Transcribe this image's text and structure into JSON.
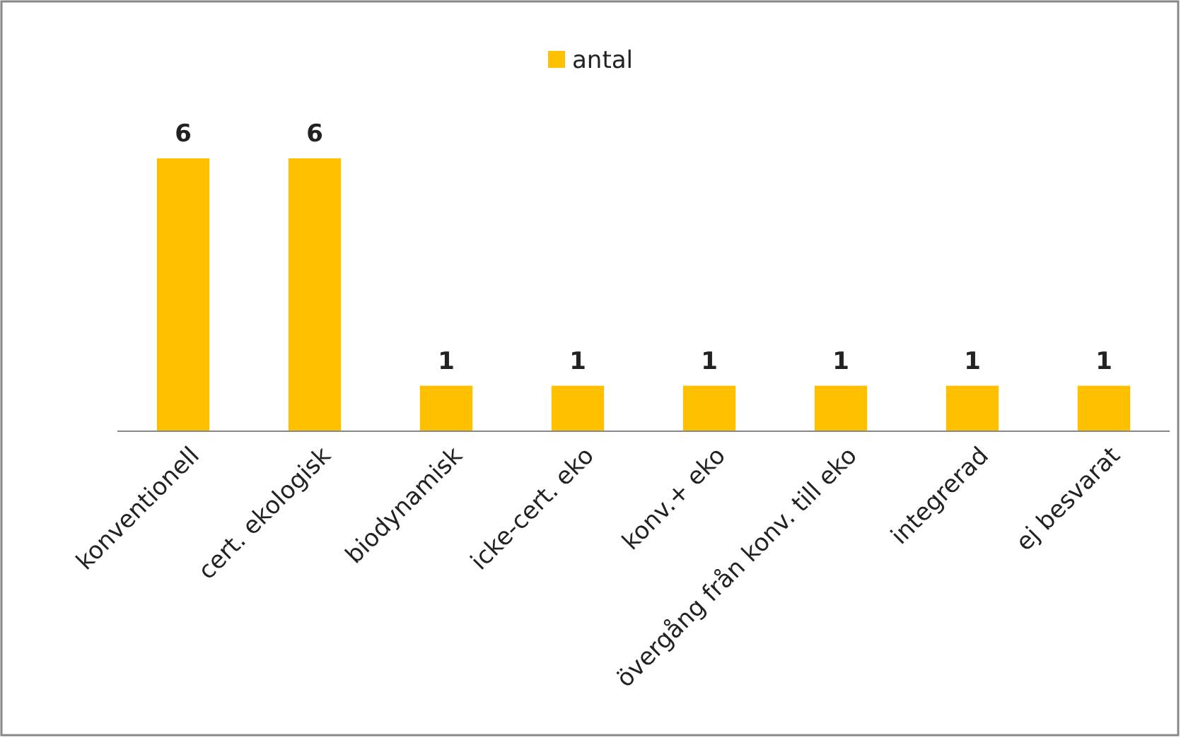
{
  "chart_data": {
    "type": "bar",
    "categories": [
      "konventionell",
      "cert. ekologisk",
      "biodynamisk",
      "icke-cert. eko",
      "konv.+ eko",
      "övergång från konv. till eko",
      "integrerad",
      "ej besvarat"
    ],
    "series": [
      {
        "name": "antal",
        "color": "#ffc000",
        "values": [
          6,
          6,
          1,
          1,
          1,
          1,
          1,
          1
        ]
      }
    ],
    "data_labels": true,
    "legend": "top"
  }
}
